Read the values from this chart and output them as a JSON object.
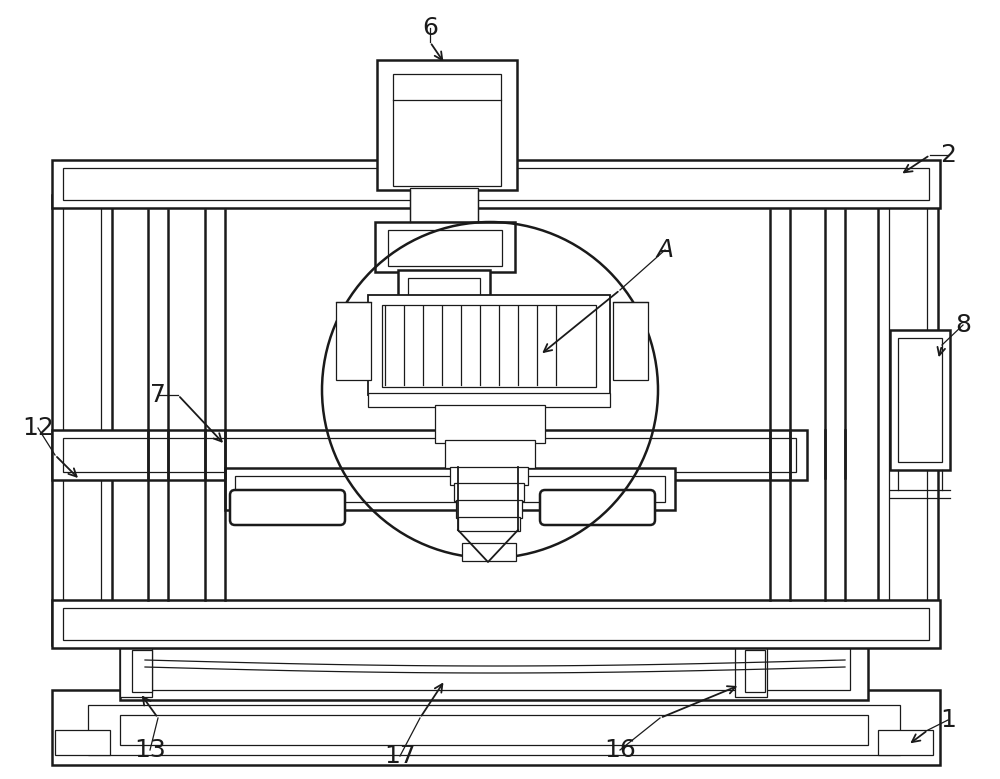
{
  "bg_color": "#ffffff",
  "lc": "#1a1a1a",
  "lw": 1.8,
  "lw_t": 0.9,
  "lw_m": 1.3,
  "fs": 18
}
